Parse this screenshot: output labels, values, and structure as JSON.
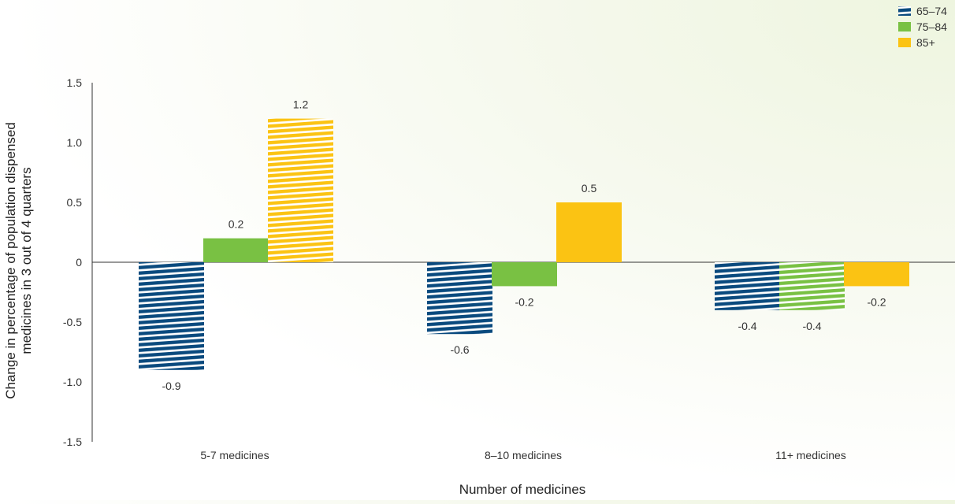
{
  "chart_data": {
    "type": "bar",
    "categories": [
      "5-7 medicines",
      "8–10 medicines",
      "11+ medicines"
    ],
    "series": [
      {
        "name": "65–74",
        "values": [
          -0.9,
          -0.6,
          -0.4
        ],
        "color": "#0a4a7e",
        "pattern": [
          true,
          true,
          true
        ]
      },
      {
        "name": "75–84",
        "values": [
          0.2,
          -0.2,
          -0.4
        ],
        "color": "#79c143",
        "pattern": [
          false,
          false,
          true
        ]
      },
      {
        "name": "85+",
        "values": [
          1.2,
          0.5,
          -0.2
        ],
        "color": "#fbc313",
        "pattern": [
          true,
          false,
          false
        ]
      }
    ],
    "data_labels": [
      [
        "-0.9",
        "-0.6",
        "-0.4"
      ],
      [
        "0.2",
        "-0.2",
        "-0.4"
      ],
      [
        "1.2",
        "0.5",
        "-0.2"
      ]
    ],
    "xlabel": "Number of medicines",
    "ylabel_lines": [
      "Change in percentage of population dispensed",
      "medicines in 3 out of 4 quarters"
    ],
    "ylim": [
      -1.5,
      1.5
    ],
    "yticks": [
      -1.5,
      -1.0,
      -0.5,
      0,
      0.5,
      1.0,
      1.5
    ],
    "ytick_labels": [
      "-1.5",
      "-1.0",
      "-0.5",
      "0",
      "0.5",
      "1.0",
      "1.5"
    ],
    "grid": false,
    "legend_position": "top-right"
  }
}
